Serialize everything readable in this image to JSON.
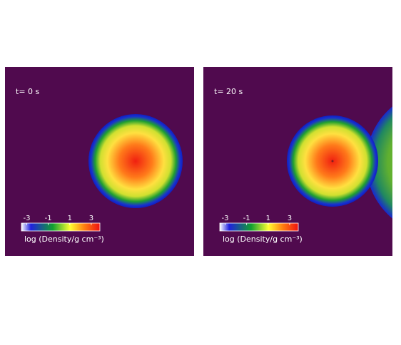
{
  "panels": [
    {
      "time_label": "t= 0 s",
      "colorbar": {
        "ticks": [
          -3,
          -1,
          1,
          3
        ],
        "range": [
          -3.5,
          3.8
        ],
        "label": "log (Density/g cm⁻³)"
      }
    },
    {
      "time_label": "t= 20 s",
      "colorbar": {
        "ticks": [
          -3,
          -1,
          1,
          3
        ],
        "range": [
          -3.5,
          3.8
        ],
        "label": "log (Density/g cm⁻³)"
      }
    }
  ]
}
